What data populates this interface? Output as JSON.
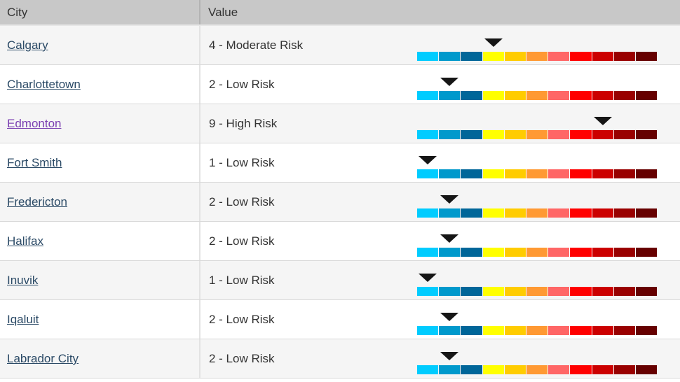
{
  "table": {
    "columns": {
      "city": "City",
      "value": "Value"
    },
    "rows": [
      {
        "city": "Calgary",
        "value": 4,
        "label": "4 - Moderate Risk",
        "visited": false
      },
      {
        "city": "Charlottetown",
        "value": 2,
        "label": "2 - Low Risk",
        "visited": false
      },
      {
        "city": "Edmonton",
        "value": 9,
        "label": "9 - High Risk",
        "visited": true
      },
      {
        "city": "Fort Smith",
        "value": 1,
        "label": "1 - Low Risk",
        "visited": false
      },
      {
        "city": "Fredericton",
        "value": 2,
        "label": "2 - Low Risk",
        "visited": false
      },
      {
        "city": "Halifax",
        "value": 2,
        "label": "2 - Low Risk",
        "visited": false
      },
      {
        "city": "Inuvik",
        "value": 1,
        "label": "1 - Low Risk",
        "visited": false
      },
      {
        "city": "Iqaluit",
        "value": 2,
        "label": "2 - Low Risk",
        "visited": false
      },
      {
        "city": "Labrador City",
        "value": 2,
        "label": "2 - Low Risk",
        "visited": false
      }
    ],
    "scale": {
      "min": 1,
      "max": 11,
      "segment_colors": [
        "#00ccff",
        "#0099cc",
        "#006699",
        "#ffff00",
        "#ffcc00",
        "#ff9933",
        "#ff6666",
        "#ff0000",
        "#cc0000",
        "#990000",
        "#660000"
      ]
    }
  },
  "colors": {
    "header_bg": "#c8c8c8",
    "row_odd_bg": "#f5f5f5",
    "row_even_bg": "#ffffff",
    "link": "#2b4a66",
    "link_visited": "#7b3fb2",
    "text": "#333333",
    "row_border": "#d9d9d9",
    "marker": "#161616"
  }
}
